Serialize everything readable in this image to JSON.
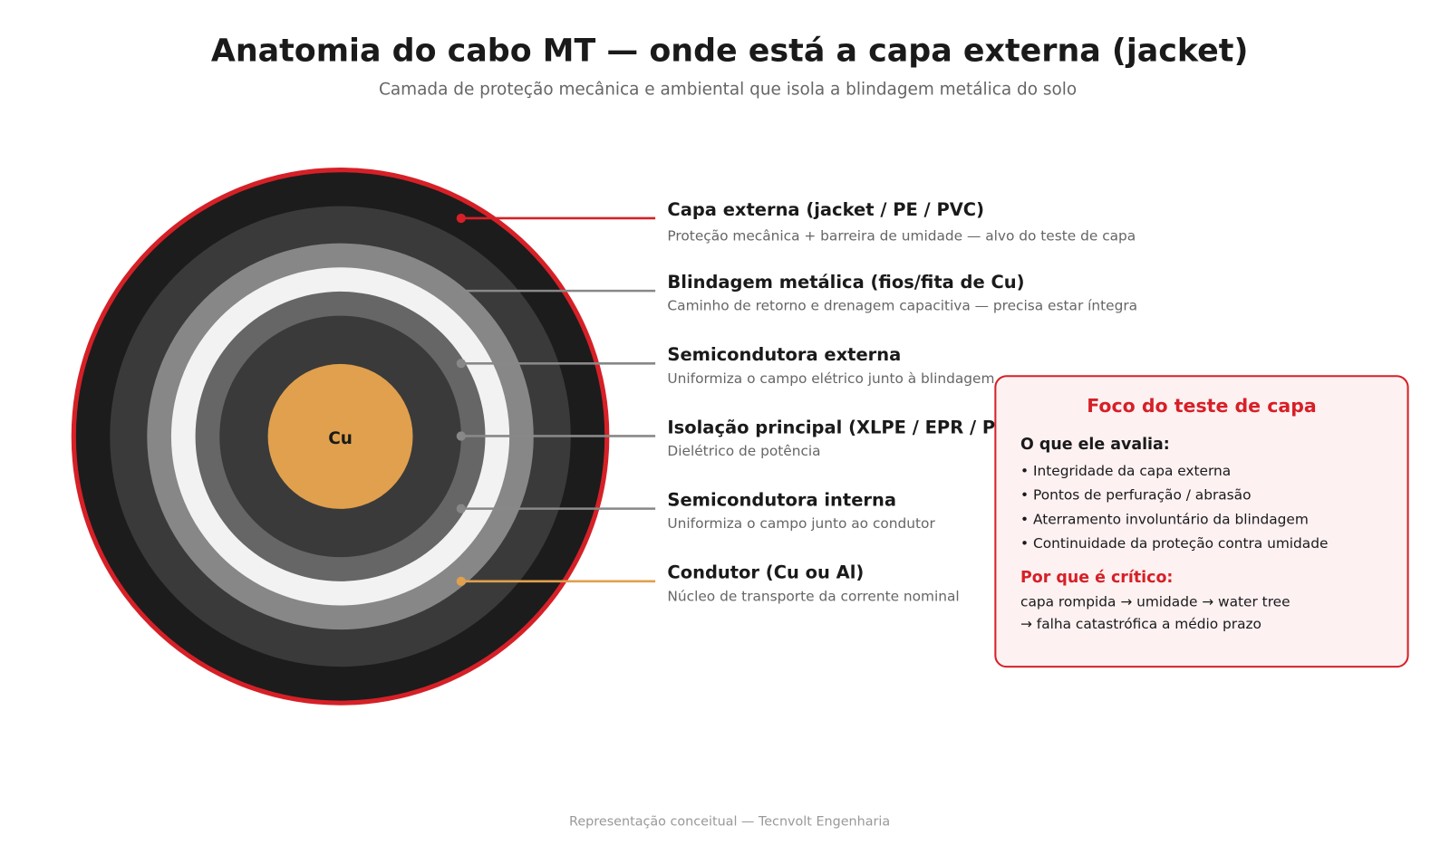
{
  "header": {
    "title": "Anatomia do cabo MT — onde está a capa externa (jacket)",
    "subtitle": "Camada de proteção mecânica e ambiental que isola a blindagem metálica do solo"
  },
  "diagram": {
    "center_label": "Cu",
    "layers": [
      {
        "name": "Capa externa (jacket / PE / PVC)",
        "description": "Proteção mecânica + barreira de umidade — alvo do teste de capa"
      },
      {
        "name": "Blindagem metálica (fios/fita de Cu)",
        "description": "Caminho de retorno e drenagem capacitiva — precisa estar íntegra"
      },
      {
        "name": "Semicondutora externa",
        "description": "Uniformiza o campo elétrico junto à blindagem"
      },
      {
        "name": "Isolação principal (XLPE / EPR / PE)",
        "description": "Dielétrico de potência"
      },
      {
        "name": "Semicondutora interna",
        "description": "Uniformiza o campo junto ao condutor"
      },
      {
        "name": "Condutor (Cu ou Al)",
        "description": "Núcleo de transporte da corrente nominal"
      }
    ]
  },
  "focus_box": {
    "title": "Foco do teste de capa",
    "evaluates_heading": "O que ele avalia:",
    "evaluates": [
      "• Integridade da capa externa",
      "• Pontos de perfuração / abrasão",
      "• Aterramento involuntário da blindagem",
      "• Continuidade da proteção contra umidade"
    ],
    "critical_heading": "Por que é crítico:",
    "critical_lines": [
      "capa rompida → umidade → water tree",
      "→ falha catastrófica a médio prazo"
    ]
  },
  "footer": "Representação conceitual — Tecnvolt Engenharia"
}
